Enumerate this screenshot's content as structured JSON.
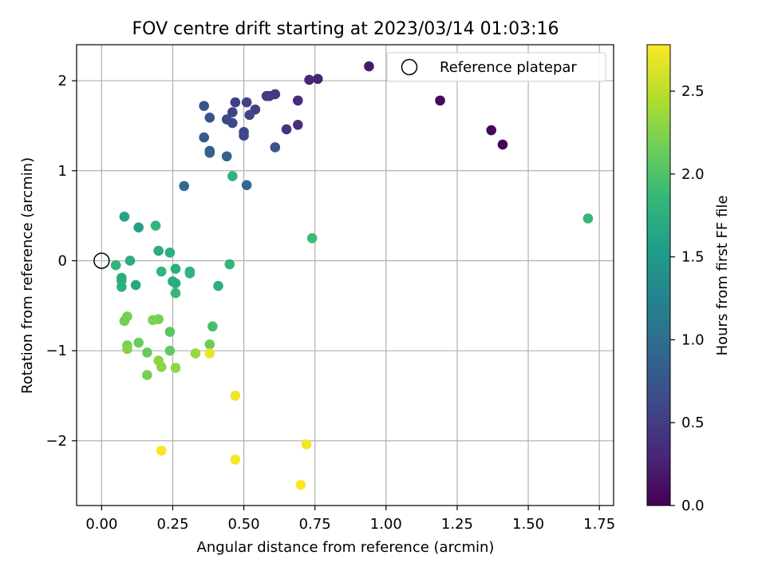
{
  "chart_data": {
    "type": "scatter",
    "title": "FOV centre drift starting at 2023/03/14 01:03:16",
    "xlabel": "Angular distance from reference (arcmin)",
    "ylabel": "Rotation from reference (arcmin)",
    "xlim": [
      -0.088,
      1.8
    ],
    "ylim": [
      -2.72,
      2.4
    ],
    "xticks": [
      0.0,
      0.25,
      0.5,
      0.75,
      1.0,
      1.25,
      1.5,
      1.75
    ],
    "xtick_labels": [
      "0.00",
      "0.25",
      "0.50",
      "0.75",
      "1.00",
      "1.25",
      "1.50",
      "1.75"
    ],
    "yticks": [
      -2,
      -1,
      0,
      1,
      2
    ],
    "ytick_labels": [
      "−2",
      "−1",
      "0",
      "1",
      "2"
    ],
    "grid": true,
    "legend": {
      "position": "top-right",
      "entries": [
        "Reference platepar"
      ]
    },
    "reference_point": {
      "x": 0,
      "y": 0
    },
    "colorbar": {
      "label": "Hours from first FF file",
      "colormap": "viridis",
      "range": [
        0,
        2.78
      ],
      "ticks": [
        0.0,
        0.5,
        1.0,
        1.5,
        2.0,
        2.5
      ],
      "tick_labels": [
        "0.0",
        "0.5",
        "1.0",
        "1.5",
        "2.0",
        "2.5"
      ],
      "colors": [
        "#440154",
        "#482878",
        "#3e4989",
        "#31688e",
        "#26828e",
        "#1f9e89",
        "#35b779",
        "#6ece58",
        "#b5de2b",
        "#fde725"
      ]
    },
    "points": [
      {
        "x": 1.41,
        "y": 1.29,
        "c": 0.03
      },
      {
        "x": 1.37,
        "y": 1.45,
        "c": 0.05
      },
      {
        "x": 1.19,
        "y": 1.78,
        "c": 0.07
      },
      {
        "x": 0.94,
        "y": 2.16,
        "c": 0.2
      },
      {
        "x": 0.76,
        "y": 2.02,
        "c": 0.28
      },
      {
        "x": 0.73,
        "y": 2.01,
        "c": 0.32
      },
      {
        "x": 0.69,
        "y": 1.78,
        "c": 0.36
      },
      {
        "x": 0.69,
        "y": 1.51,
        "c": 0.38
      },
      {
        "x": 0.65,
        "y": 1.46,
        "c": 0.42
      },
      {
        "x": 0.61,
        "y": 1.85,
        "c": 0.46
      },
      {
        "x": 0.59,
        "y": 1.83,
        "c": 0.48
      },
      {
        "x": 0.58,
        "y": 1.83,
        "c": 0.5
      },
      {
        "x": 0.54,
        "y": 1.68,
        "c": 0.55
      },
      {
        "x": 0.51,
        "y": 1.76,
        "c": 0.57
      },
      {
        "x": 0.47,
        "y": 1.76,
        "c": 0.52
      },
      {
        "x": 0.46,
        "y": 1.65,
        "c": 0.54
      },
      {
        "x": 0.44,
        "y": 1.57,
        "c": 0.6
      },
      {
        "x": 0.46,
        "y": 1.53,
        "c": 0.62
      },
      {
        "x": 0.52,
        "y": 1.62,
        "c": 0.6
      },
      {
        "x": 0.5,
        "y": 1.43,
        "c": 0.6
      },
      {
        "x": 0.5,
        "y": 1.39,
        "c": 0.62
      },
      {
        "x": 0.61,
        "y": 1.26,
        "c": 0.72
      },
      {
        "x": 0.36,
        "y": 1.72,
        "c": 0.7
      },
      {
        "x": 0.38,
        "y": 1.59,
        "c": 0.72
      },
      {
        "x": 0.36,
        "y": 1.37,
        "c": 0.8
      },
      {
        "x": 0.38,
        "y": 1.22,
        "c": 0.82
      },
      {
        "x": 0.38,
        "y": 1.2,
        "c": 0.85
      },
      {
        "x": 0.44,
        "y": 1.16,
        "c": 0.88
      },
      {
        "x": 0.29,
        "y": 0.83,
        "c": 0.96
      },
      {
        "x": 0.51,
        "y": 0.84,
        "c": 0.92
      },
      {
        "x": 0.46,
        "y": 0.94,
        "c": 1.8
      },
      {
        "x": 1.71,
        "y": 0.47,
        "c": 1.85
      },
      {
        "x": 0.74,
        "y": 0.25,
        "c": 1.9
      },
      {
        "x": 0.08,
        "y": 0.49,
        "c": 1.62
      },
      {
        "x": 0.13,
        "y": 0.37,
        "c": 1.58
      },
      {
        "x": 0.19,
        "y": 0.39,
        "c": 1.82
      },
      {
        "x": 0.2,
        "y": 0.11,
        "c": 1.7
      },
      {
        "x": 0.24,
        "y": 0.09,
        "c": 1.75
      },
      {
        "x": 0.05,
        "y": -0.05,
        "c": 1.8
      },
      {
        "x": 0.1,
        "y": 0.0,
        "c": 1.72
      },
      {
        "x": 0.07,
        "y": -0.19,
        "c": 1.75
      },
      {
        "x": 0.07,
        "y": -0.22,
        "c": 1.73
      },
      {
        "x": 0.07,
        "y": -0.29,
        "c": 1.77
      },
      {
        "x": 0.12,
        "y": -0.27,
        "c": 1.65
      },
      {
        "x": 0.21,
        "y": -0.12,
        "c": 1.83
      },
      {
        "x": 0.25,
        "y": -0.23,
        "c": 1.7
      },
      {
        "x": 0.26,
        "y": -0.25,
        "c": 1.72
      },
      {
        "x": 0.26,
        "y": -0.09,
        "c": 1.75
      },
      {
        "x": 0.26,
        "y": -0.36,
        "c": 1.85
      },
      {
        "x": 0.31,
        "y": -0.12,
        "c": 1.78
      },
      {
        "x": 0.31,
        "y": -0.14,
        "c": 1.8
      },
      {
        "x": 0.41,
        "y": -0.28,
        "c": 1.75
      },
      {
        "x": 0.45,
        "y": -0.04,
        "c": 1.82
      },
      {
        "x": 0.39,
        "y": -0.73,
        "c": 1.95
      },
      {
        "x": 0.09,
        "y": -0.62,
        "c": 2.2
      },
      {
        "x": 0.08,
        "y": -0.67,
        "c": 2.18
      },
      {
        "x": 0.18,
        "y": -0.66,
        "c": 2.22
      },
      {
        "x": 0.2,
        "y": -0.65,
        "c": 2.2
      },
      {
        "x": 0.24,
        "y": -0.79,
        "c": 2.05
      },
      {
        "x": 0.09,
        "y": -0.94,
        "c": 2.2
      },
      {
        "x": 0.09,
        "y": -0.98,
        "c": 2.25
      },
      {
        "x": 0.13,
        "y": -0.91,
        "c": 2.15
      },
      {
        "x": 0.16,
        "y": -1.02,
        "c": 2.12
      },
      {
        "x": 0.2,
        "y": -1.11,
        "c": 2.3
      },
      {
        "x": 0.21,
        "y": -1.18,
        "c": 2.28
      },
      {
        "x": 0.16,
        "y": -1.27,
        "c": 2.2
      },
      {
        "x": 0.24,
        "y": -1.0,
        "c": 2.1
      },
      {
        "x": 0.26,
        "y": -1.19,
        "c": 2.3
      },
      {
        "x": 0.33,
        "y": -1.03,
        "c": 2.35
      },
      {
        "x": 0.38,
        "y": -0.93,
        "c": 2.15
      },
      {
        "x": 0.38,
        "y": -1.03,
        "c": 2.7
      },
      {
        "x": 0.47,
        "y": -1.5,
        "c": 2.72
      },
      {
        "x": 0.21,
        "y": -2.11,
        "c": 2.75
      },
      {
        "x": 0.47,
        "y": -2.21,
        "c": 2.76
      },
      {
        "x": 0.72,
        "y": -2.04,
        "c": 2.73
      },
      {
        "x": 0.7,
        "y": -2.49,
        "c": 2.78
      }
    ]
  }
}
